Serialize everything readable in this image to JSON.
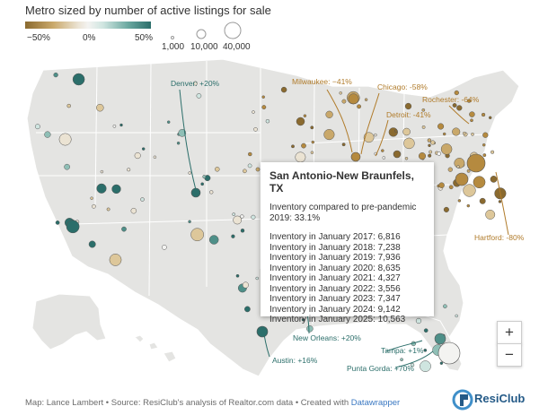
{
  "legend": {
    "title": "Metro sized by number of active listings for sale",
    "color_ticks": [
      "−50%",
      "0%",
      "50%"
    ],
    "size_ticks": [
      "1,000",
      "10,000",
      "40,000"
    ],
    "colors": {
      "low": "#8a6a2f",
      "mid": "#f3f3f1",
      "high": "#2b6e6a"
    }
  },
  "annotations": {
    "denver": "Denver: +20%",
    "milwaukee": "Milwaukee: −41%",
    "chicago": "Chicago: -58%",
    "detroit": "Detroit: -41%",
    "rochester": "Rochester: -64%",
    "hartford": "Hartford: -80%",
    "new_orleans": "New Orleans: +20%",
    "austin": "Austin: +16%",
    "tampa": "Tampa: +1%",
    "punta_gorda": "Punta Gorda: +70%"
  },
  "tooltip": {
    "title": "San Antonio-New Braunfels, TX",
    "compare_1": "Inventory compared to pre-pandemic",
    "compare_2": "2019: 33.1%",
    "lines": [
      "Inventory in January 2017: 6,816",
      "Inventory in January 2018: 7,238",
      "Inventory in January 2019: 7,936",
      "Inventory in January 2020: 8,635",
      "Inventory in January 2021: 4,327",
      "Inventory in January 2022: 3,556",
      "Inventory in January 2023: 7,347",
      "Inventory in January 2024: 9,142",
      "Inventory in January 2025: 10,563"
    ]
  },
  "controls": {
    "zoom_in": "+",
    "zoom_out": "−"
  },
  "footer": {
    "text": "Map: Lance Lambert • Source: ResiClub's analysis of Realtor.com data • Created with ",
    "link": "Datawrapper"
  },
  "brand": {
    "name": "ResiClub"
  }
}
